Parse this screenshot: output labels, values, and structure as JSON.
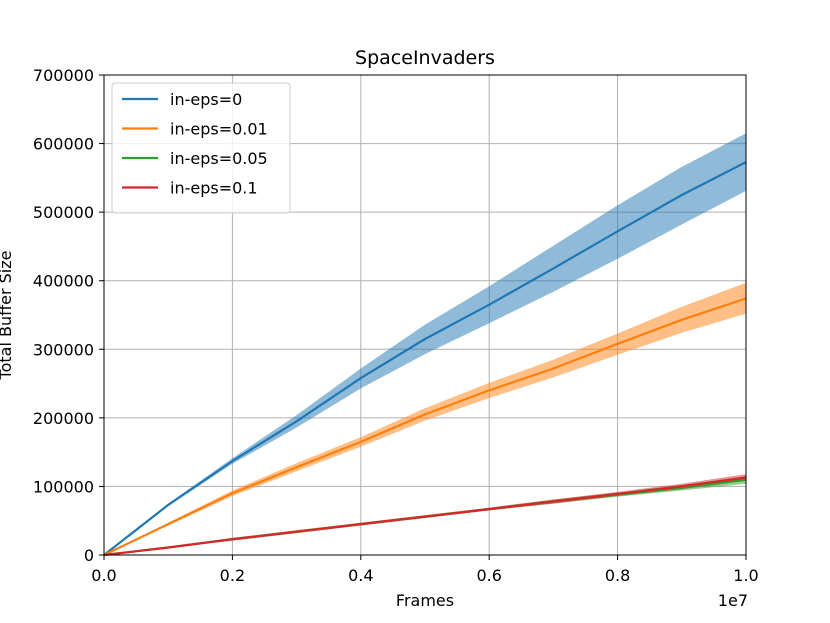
{
  "chart_data": {
    "type": "line",
    "title": "SpaceInvaders",
    "xlabel": "Frames",
    "ylabel": "Total Buffer Size",
    "x_offset_label": "1e7",
    "xlim": [
      0,
      1.0
    ],
    "ylim": [
      0,
      700000
    ],
    "x_ticks": [
      0.0,
      0.2,
      0.4,
      0.6,
      0.8,
      1.0
    ],
    "x_tick_labels": [
      "0.0",
      "0.2",
      "0.4",
      "0.6",
      "0.8",
      "1.0"
    ],
    "y_ticks": [
      0,
      100000,
      200000,
      300000,
      400000,
      500000,
      600000,
      700000
    ],
    "y_tick_labels": [
      "0",
      "100000",
      "200000",
      "300000",
      "400000",
      "500000",
      "600000",
      "700000"
    ],
    "grid": true,
    "legend_position": "top-left",
    "x": [
      0.0,
      0.1,
      0.2,
      0.3,
      0.4,
      0.5,
      0.6,
      0.7,
      0.8,
      0.9,
      1.0
    ],
    "series": [
      {
        "name": "in-eps=0",
        "color": "#1f77b4",
        "values": [
          0,
          73000,
          137000,
          195000,
          258000,
          315000,
          365000,
          418000,
          472000,
          525000,
          573000
        ],
        "lower": [
          0,
          71000,
          133000,
          186000,
          243000,
          293000,
          338000,
          384000,
          432000,
          482000,
          531000
        ],
        "upper": [
          0,
          75000,
          141000,
          204000,
          272000,
          336000,
          392000,
          451000,
          510000,
          566000,
          615000
        ]
      },
      {
        "name": "in-eps=0.01",
        "color": "#ff7f0e",
        "values": [
          0,
          45000,
          90000,
          128000,
          165000,
          205000,
          240000,
          272000,
          308000,
          343000,
          374000
        ],
        "lower": [
          0,
          43000,
          86000,
          122000,
          158000,
          196000,
          229000,
          259000,
          292000,
          324000,
          352000
        ],
        "upper": [
          0,
          47000,
          94000,
          134000,
          172000,
          214000,
          251000,
          285000,
          323000,
          362000,
          397000
        ]
      },
      {
        "name": "in-eps=0.05",
        "color": "#2ca02c",
        "values": [
          0,
          11000,
          23000,
          34000,
          45000,
          56000,
          67000,
          78000,
          88000,
          98000,
          110000
        ],
        "lower": [
          0,
          10000,
          21000,
          32000,
          43000,
          54000,
          65000,
          75000,
          85000,
          94000,
          104000
        ],
        "upper": [
          0,
          12000,
          25000,
          36000,
          47000,
          58000,
          69000,
          81000,
          91000,
          102000,
          114000
        ]
      },
      {
        "name": "in-eps=0.1",
        "color": "#d62728",
        "values": [
          0,
          11000,
          23000,
          34000,
          45000,
          56000,
          67000,
          78000,
          89000,
          100000,
          113000
        ],
        "lower": [
          0,
          10000,
          21000,
          32000,
          43000,
          54000,
          65000,
          75000,
          86000,
          96000,
          108000
        ],
        "upper": [
          0,
          12000,
          25000,
          36000,
          47000,
          58000,
          69000,
          81000,
          92000,
          104000,
          118000
        ]
      }
    ]
  }
}
